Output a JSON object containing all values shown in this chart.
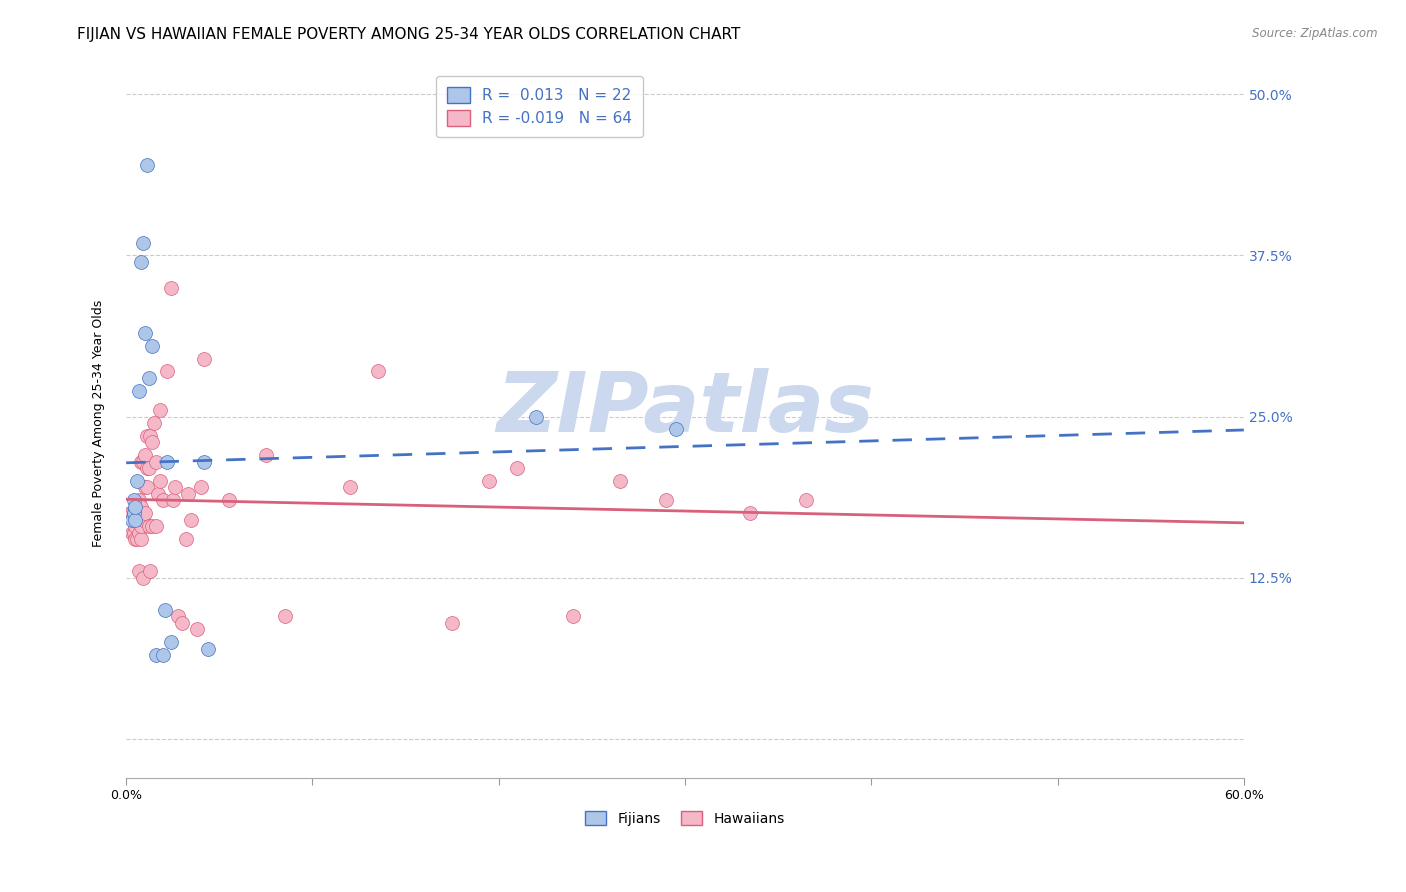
{
  "title": "FIJIAN VS HAWAIIAN FEMALE POVERTY AMONG 25-34 YEAR OLDS CORRELATION CHART",
  "source": "Source: ZipAtlas.com",
  "ylabel_label": "Female Poverty Among 25-34 Year Olds",
  "xlim": [
    0.0,
    0.6
  ],
  "ylim": [
    -0.03,
    0.52
  ],
  "ytick_positions": [
    0.0,
    0.125,
    0.25,
    0.375,
    0.5
  ],
  "ytick_labels": [
    "",
    "12.5%",
    "25.0%",
    "37.5%",
    "50.0%"
  ],
  "fijian_color": "#aec6e8",
  "hawaiian_color": "#f5b8c8",
  "fijian_line_color": "#4472c4",
  "hawaiian_line_color": "#d9607a",
  "R_fijian": 0.013,
  "N_fijian": 22,
  "R_hawaiian": -0.019,
  "N_hawaiian": 64,
  "fijian_x": [
    0.003,
    0.004,
    0.004,
    0.005,
    0.005,
    0.006,
    0.007,
    0.008,
    0.009,
    0.01,
    0.011,
    0.012,
    0.014,
    0.016,
    0.02,
    0.021,
    0.022,
    0.024,
    0.042,
    0.044,
    0.22,
    0.295
  ],
  "fijian_y": [
    0.17,
    0.175,
    0.185,
    0.17,
    0.18,
    0.2,
    0.27,
    0.37,
    0.385,
    0.315,
    0.445,
    0.28,
    0.305,
    0.065,
    0.065,
    0.1,
    0.215,
    0.075,
    0.215,
    0.07,
    0.25,
    0.24
  ],
  "hawaiian_x": [
    0.002,
    0.003,
    0.003,
    0.004,
    0.004,
    0.005,
    0.005,
    0.005,
    0.006,
    0.006,
    0.007,
    0.007,
    0.007,
    0.008,
    0.008,
    0.008,
    0.008,
    0.009,
    0.009,
    0.009,
    0.01,
    0.01,
    0.01,
    0.011,
    0.011,
    0.011,
    0.012,
    0.012,
    0.013,
    0.013,
    0.014,
    0.014,
    0.015,
    0.016,
    0.016,
    0.017,
    0.018,
    0.018,
    0.02,
    0.022,
    0.024,
    0.025,
    0.026,
    0.028,
    0.03,
    0.032,
    0.033,
    0.035,
    0.038,
    0.04,
    0.042,
    0.055,
    0.075,
    0.085,
    0.12,
    0.135,
    0.175,
    0.195,
    0.21,
    0.24,
    0.265,
    0.29,
    0.335,
    0.365
  ],
  "hawaiian_y": [
    0.175,
    0.16,
    0.175,
    0.16,
    0.175,
    0.155,
    0.165,
    0.175,
    0.155,
    0.17,
    0.13,
    0.16,
    0.185,
    0.155,
    0.165,
    0.18,
    0.215,
    0.125,
    0.17,
    0.215,
    0.175,
    0.195,
    0.22,
    0.195,
    0.21,
    0.235,
    0.165,
    0.21,
    0.13,
    0.235,
    0.165,
    0.23,
    0.245,
    0.165,
    0.215,
    0.19,
    0.2,
    0.255,
    0.185,
    0.285,
    0.35,
    0.185,
    0.195,
    0.095,
    0.09,
    0.155,
    0.19,
    0.17,
    0.085,
    0.195,
    0.295,
    0.185,
    0.22,
    0.095,
    0.195,
    0.285,
    0.09,
    0.2,
    0.21,
    0.095,
    0.2,
    0.185,
    0.175,
    0.185
  ],
  "background_color": "#ffffff",
  "grid_color": "#cccccc",
  "watermark_text": "ZIPatlas",
  "watermark_color": "#ccd8ee",
  "title_fontsize": 11,
  "axis_fontsize": 9,
  "tick_fontsize": 9,
  "legend_text_color": "#4472c4",
  "right_ytick_color": "#4472c4"
}
